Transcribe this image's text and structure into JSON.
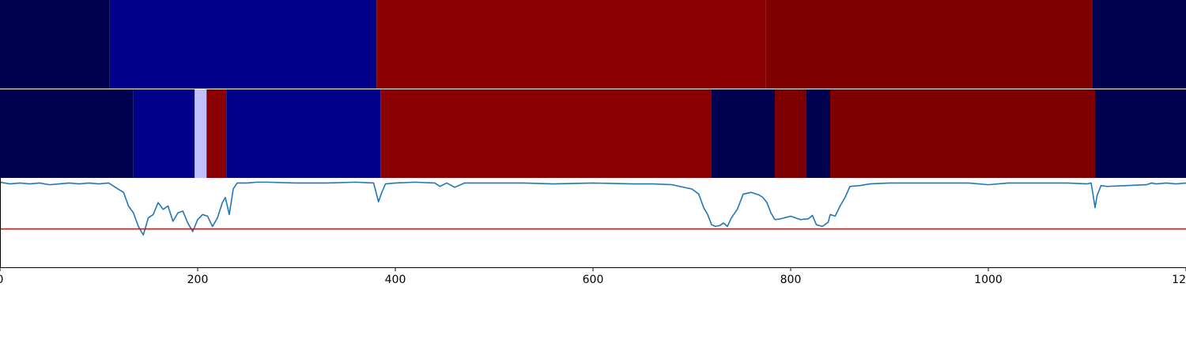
{
  "chart_data": {
    "type": "segmentation",
    "x_ticks": [
      0,
      200,
      400,
      600,
      800,
      1000,
      1200
    ],
    "x_tick_labels": [
      "0",
      "200",
      "400",
      "600",
      "800",
      "1000",
      "1200"
    ],
    "xlim": [
      0,
      1200
    ],
    "ylim": [
      0,
      1.05
    ],
    "threshold": 0.45,
    "colors": {
      "threshold_line": "#ff0000",
      "score_line": "#1f77b4",
      "axes_edge": "#000000"
    },
    "segment_rows": [
      {
        "name": "",
        "segments": [
          {
            "start": 0,
            "end": 111,
            "color": "#000050"
          },
          {
            "start": 111,
            "end": 381,
            "color": "#00008b"
          },
          {
            "start": 381,
            "end": 775,
            "color": "#8b0000"
          },
          {
            "start": 775,
            "end": 1105,
            "color": "#7f0000"
          },
          {
            "start": 1105,
            "end": 1200,
            "color": "#000050"
          }
        ]
      },
      {
        "name": "",
        "segments": [
          {
            "start": 0,
            "end": 135,
            "color": "#000050"
          },
          {
            "start": 135,
            "end": 197,
            "color": "#00008b"
          },
          {
            "start": 197,
            "end": 209,
            "color": "#c0c0ff"
          },
          {
            "start": 209,
            "end": 229,
            "color": "#8b0000"
          },
          {
            "start": 229,
            "end": 385,
            "color": "#00008b"
          },
          {
            "start": 385,
            "end": 720,
            "color": "#8b0000"
          },
          {
            "start": 720,
            "end": 784,
            "color": "#000050"
          },
          {
            "start": 784,
            "end": 816,
            "color": "#7f0000"
          },
          {
            "start": 816,
            "end": 840,
            "color": "#000050"
          },
          {
            "start": 840,
            "end": 1108,
            "color": "#7f0000"
          },
          {
            "start": 1108,
            "end": 1200,
            "color": "#000050"
          }
        ]
      }
    ],
    "series": [
      {
        "name": "",
        "x": [
          0,
          10,
          20,
          30,
          40,
          50,
          60,
          70,
          80,
          90,
          100,
          110,
          118,
          125,
          130,
          135,
          140,
          145,
          150,
          155,
          160,
          165,
          170,
          175,
          180,
          185,
          190,
          195,
          200,
          205,
          210,
          215,
          220,
          225,
          228,
          232,
          236,
          240,
          250,
          260,
          270,
          300,
          330,
          360,
          378,
          383,
          386,
          390,
          400,
          420,
          440,
          445,
          452,
          460,
          470,
          500,
          530,
          560,
          600,
          640,
          660,
          680,
          700,
          707,
          712,
          716,
          720,
          724,
          728,
          732,
          736,
          740,
          746,
          752,
          760,
          768,
          772,
          776,
          780,
          784,
          790,
          800,
          810,
          818,
          822,
          826,
          832,
          838,
          840,
          845,
          850,
          855,
          860,
          870,
          880,
          900,
          940,
          980,
          1000,
          1020,
          1050,
          1080,
          1100,
          1104,
          1106,
          1108,
          1110,
          1114,
          1120,
          1140,
          1160,
          1165,
          1170,
          1180,
          1190,
          1200
        ],
        "y": [
          1.0,
          0.98,
          0.99,
          0.98,
          0.99,
          0.97,
          0.98,
          0.99,
          0.98,
          0.99,
          0.98,
          0.99,
          0.93,
          0.88,
          0.72,
          0.64,
          0.48,
          0.38,
          0.58,
          0.62,
          0.76,
          0.68,
          0.72,
          0.54,
          0.64,
          0.66,
          0.52,
          0.42,
          0.56,
          0.62,
          0.6,
          0.48,
          0.58,
          0.76,
          0.82,
          0.62,
          0.92,
          0.99,
          0.99,
          1.0,
          1.0,
          0.99,
          0.99,
          1.0,
          0.99,
          0.77,
          0.87,
          0.98,
          0.99,
          1.0,
          0.99,
          0.95,
          0.99,
          0.94,
          0.99,
          0.99,
          0.99,
          0.98,
          0.99,
          0.98,
          0.98,
          0.97,
          0.92,
          0.86,
          0.7,
          0.62,
          0.5,
          0.48,
          0.49,
          0.52,
          0.48,
          0.58,
          0.68,
          0.86,
          0.88,
          0.85,
          0.82,
          0.76,
          0.64,
          0.56,
          0.57,
          0.6,
          0.56,
          0.57,
          0.61,
          0.5,
          0.48,
          0.53,
          0.62,
          0.6,
          0.72,
          0.82,
          0.95,
          0.96,
          0.98,
          0.99,
          0.99,
          0.99,
          0.97,
          0.99,
          0.99,
          0.99,
          0.98,
          0.99,
          0.85,
          0.7,
          0.84,
          0.96,
          0.95,
          0.96,
          0.97,
          0.99,
          0.98,
          0.99,
          0.98,
          0.99
        ]
      }
    ]
  }
}
